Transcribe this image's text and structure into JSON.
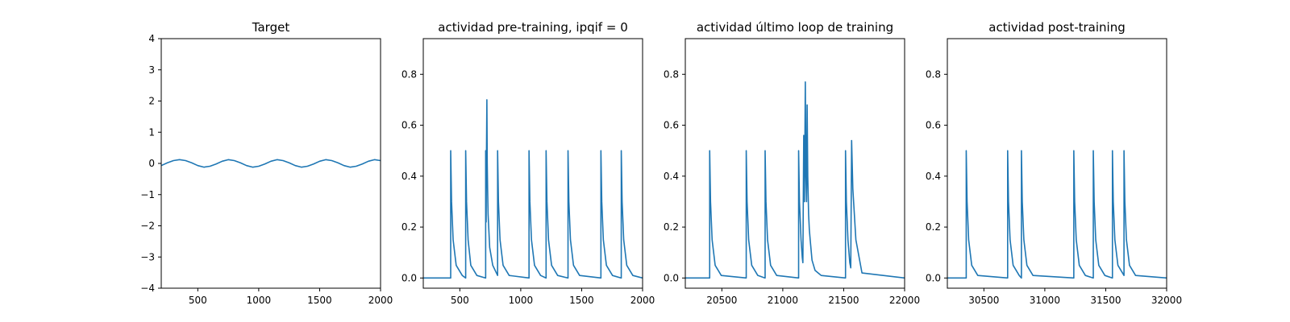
{
  "chart_data": [
    {
      "type": "line",
      "title": "Target",
      "xlim": [
        200,
        2000
      ],
      "ylim": [
        -4,
        4
      ],
      "xticks": [
        500,
        1000,
        1500,
        2000
      ],
      "yticks": [
        -4,
        -3,
        -2,
        -1,
        0,
        1,
        2,
        3,
        4
      ],
      "series": [
        {
          "x": [
            200,
            250,
            300,
            350,
            400,
            450,
            500,
            550,
            600,
            650,
            700,
            750,
            800,
            850,
            900,
            950,
            1000,
            1050,
            1100,
            1150,
            1200,
            1250,
            1300,
            1350,
            1400,
            1450,
            1500,
            1550,
            1600,
            1650,
            1700,
            1750,
            1800,
            1850,
            1900,
            1950,
            2000
          ],
          "y": [
            -0.07,
            0.02,
            0.09,
            0.12,
            0.09,
            0.02,
            -0.07,
            -0.12,
            -0.09,
            -0.02,
            0.07,
            0.12,
            0.09,
            0.02,
            -0.07,
            -0.12,
            -0.09,
            -0.02,
            0.07,
            0.12,
            0.09,
            0.02,
            -0.07,
            -0.12,
            -0.09,
            -0.02,
            0.07,
            0.12,
            0.09,
            0.02,
            -0.07,
            -0.12,
            -0.09,
            -0.02,
            0.07,
            0.12,
            0.09
          ]
        }
      ]
    },
    {
      "type": "line",
      "title": "actividad pre-training, ipqif = 0",
      "xlim": [
        200,
        2000
      ],
      "ylim": [
        -0.04,
        0.94
      ],
      "xticks": [
        500,
        1000,
        1500,
        2000
      ],
      "yticks": [
        0.0,
        0.2,
        0.4,
        0.6,
        0.8
      ],
      "series": [
        {
          "x": [
            200,
            425,
            425,
            432,
            445,
            470,
            520,
            548,
            548,
            555,
            568,
            590,
            640,
            712,
            712,
            716,
            718,
            722,
            725,
            728,
            732,
            745,
            770,
            810,
            810,
            817,
            830,
            855,
            905,
            1068,
            1068,
            1075,
            1088,
            1113,
            1163,
            1208,
            1208,
            1215,
            1228,
            1253,
            1303,
            1388,
            1388,
            1395,
            1408,
            1433,
            1483,
            1658,
            1658,
            1665,
            1678,
            1703,
            1753,
            1825,
            1825,
            1832,
            1845,
            1870,
            1920,
            2000
          ],
          "y": [
            0.0,
            0.0,
            0.5,
            0.3,
            0.15,
            0.05,
            0.01,
            0.0,
            0.5,
            0.3,
            0.15,
            0.05,
            0.01,
            0.0,
            0.5,
            0.22,
            0.45,
            0.7,
            0.45,
            0.35,
            0.25,
            0.12,
            0.05,
            0.01,
            0.5,
            0.3,
            0.15,
            0.05,
            0.01,
            0.0,
            0.5,
            0.3,
            0.15,
            0.05,
            0.01,
            0.0,
            0.5,
            0.3,
            0.15,
            0.05,
            0.01,
            0.0,
            0.5,
            0.3,
            0.15,
            0.05,
            0.01,
            0.0,
            0.5,
            0.3,
            0.15,
            0.05,
            0.01,
            0.0,
            0.5,
            0.3,
            0.15,
            0.05,
            0.01,
            0.0
          ]
        }
      ]
    },
    {
      "type": "line",
      "title": "actividad último loop de training",
      "xlim": [
        20200,
        22000
      ],
      "ylim": [
        -0.04,
        0.94
      ],
      "xticks": [
        20500,
        21000,
        21500,
        22000
      ],
      "yticks": [
        0.0,
        0.2,
        0.4,
        0.6,
        0.8
      ],
      "series": [
        {
          "x": [
            20200,
            20400,
            20400,
            20407,
            20420,
            20445,
            20495,
            20700,
            20700,
            20707,
            20720,
            20745,
            20795,
            20855,
            20855,
            20862,
            20875,
            20900,
            20950,
            21130,
            21130,
            21137,
            21150,
            21160,
            21165,
            21172,
            21178,
            21185,
            21190,
            21195,
            21200,
            21205,
            21212,
            21218,
            21225,
            21240,
            21265,
            21315,
            21515,
            21515,
            21522,
            21535,
            21550,
            21558,
            21565,
            21575,
            21600,
            21650,
            22000
          ],
          "y": [
            0.0,
            0.0,
            0.5,
            0.3,
            0.15,
            0.05,
            0.01,
            0.0,
            0.5,
            0.3,
            0.15,
            0.05,
            0.01,
            0.0,
            0.5,
            0.3,
            0.15,
            0.05,
            0.01,
            0.0,
            0.5,
            0.3,
            0.15,
            0.08,
            0.06,
            0.56,
            0.3,
            0.77,
            0.4,
            0.3,
            0.68,
            0.4,
            0.25,
            0.19,
            0.15,
            0.07,
            0.03,
            0.01,
            0.0,
            0.5,
            0.3,
            0.15,
            0.06,
            0.04,
            0.54,
            0.35,
            0.15,
            0.02,
            0.0
          ]
        }
      ]
    },
    {
      "type": "line",
      "title": "actividad post-training",
      "xlim": [
        30200,
        32000
      ],
      "ylim": [
        -0.04,
        0.94
      ],
      "xticks": [
        30500,
        31000,
        31500,
        32000
      ],
      "yticks": [
        0.0,
        0.2,
        0.4,
        0.6,
        0.8
      ],
      "series": [
        {
          "x": [
            30200,
            30355,
            30355,
            30362,
            30375,
            30400,
            30450,
            30695,
            30695,
            30702,
            30715,
            30740,
            30790,
            30808,
            30808,
            30815,
            30828,
            30853,
            30903,
            31238,
            31238,
            31245,
            31258,
            31283,
            31333,
            31398,
            31398,
            31405,
            31418,
            31443,
            31493,
            31555,
            31555,
            31562,
            31575,
            31600,
            31650,
            31650,
            31657,
            31670,
            31695,
            31745,
            32000
          ],
          "y": [
            0.0,
            0.0,
            0.5,
            0.3,
            0.15,
            0.05,
            0.01,
            0.0,
            0.5,
            0.3,
            0.15,
            0.05,
            0.01,
            0.0,
            0.5,
            0.3,
            0.15,
            0.05,
            0.01,
            0.0,
            0.5,
            0.3,
            0.15,
            0.05,
            0.01,
            0.0,
            0.5,
            0.3,
            0.15,
            0.05,
            0.01,
            0.0,
            0.5,
            0.3,
            0.15,
            0.05,
            0.01,
            0.5,
            0.3,
            0.15,
            0.05,
            0.01,
            0.0
          ]
        }
      ]
    }
  ]
}
